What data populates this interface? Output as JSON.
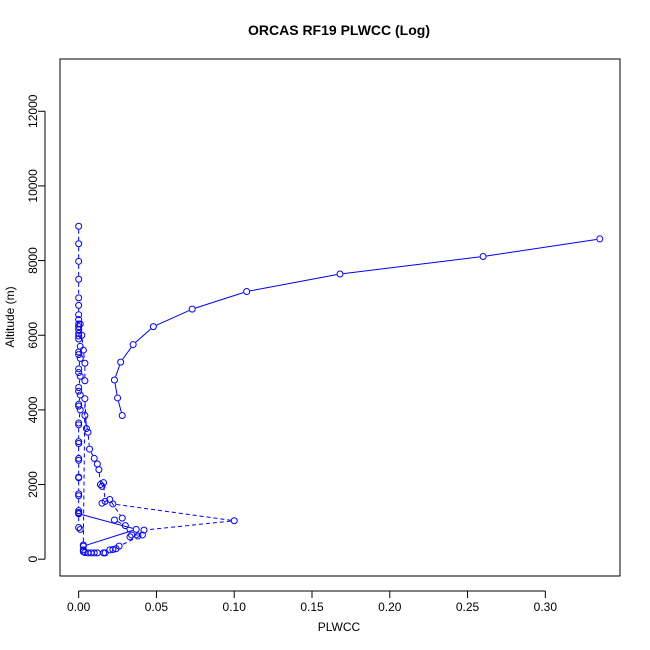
{
  "chart_data": {
    "type": "scatter",
    "title": "ORCAS RF19 PLWCC (Log)",
    "xlabel": "PLWCC",
    "ylabel": "Altitude (m)",
    "xlim": [
      -0.012,
      0.348
    ],
    "ylim": [
      -450,
      13400
    ],
    "xticks": [
      "0.00",
      "0.05",
      "0.10",
      "0.15",
      "0.20",
      "0.25",
      "0.30"
    ],
    "yticks": [
      "0",
      "2000",
      "4000",
      "6000",
      "8000",
      "10000",
      "12000"
    ],
    "color": "#0000ff",
    "marker": "open-circle",
    "grid": false,
    "legend": "none",
    "series": [
      {
        "line_style": "dashed",
        "points": [
          [
            0.0,
            8920
          ],
          [
            0.0,
            8450
          ],
          [
            0.0,
            7980
          ],
          [
            0.0,
            7500
          ],
          [
            0.0,
            7000
          ],
          [
            0.0,
            6800
          ],
          [
            0.0,
            6550
          ],
          [
            0.0,
            6420
          ],
          [
            0.0,
            6300
          ],
          [
            0.0,
            6230
          ],
          [
            0.0,
            6150
          ],
          [
            0.0,
            6050
          ],
          [
            0.0,
            5980
          ],
          [
            0.0,
            5900
          ],
          [
            0.001,
            5700
          ],
          [
            0.0,
            5550
          ],
          [
            0.0,
            5480
          ],
          [
            0.001,
            5380
          ],
          [
            0.0,
            5100
          ],
          [
            0.0,
            5000
          ],
          [
            0.001,
            4900
          ],
          [
            0.0,
            4600
          ],
          [
            0.0,
            4500
          ],
          [
            0.001,
            4400
          ],
          [
            0.0,
            4150
          ],
          [
            0.0,
            4100
          ],
          [
            0.001,
            4000
          ],
          [
            0.0,
            3650
          ],
          [
            0.0,
            3600
          ],
          [
            0.0,
            3150
          ],
          [
            0.0,
            3100
          ],
          [
            0.0,
            2700
          ],
          [
            0.0,
            2650
          ],
          [
            0.0,
            2200
          ],
          [
            0.0,
            2180
          ],
          [
            0.0,
            1750
          ],
          [
            0.0,
            1700
          ],
          [
            0.0,
            1300
          ],
          [
            0.0,
            1250
          ],
          [
            0.0,
            1220
          ],
          [
            0.0,
            850
          ],
          [
            0.001,
            800
          ]
        ]
      },
      {
        "line_style": "solid",
        "points": [
          [
            0.0,
            1220
          ],
          [
            0.037,
            800
          ],
          [
            0.003,
            350
          ],
          [
            0.003,
            250
          ],
          [
            0.003,
            200
          ],
          [
            0.004,
            180
          ],
          [
            0.006,
            170
          ],
          [
            0.008,
            170
          ],
          [
            0.01,
            170
          ],
          [
            0.012,
            170
          ],
          [
            0.016,
            170
          ],
          [
            0.017,
            170
          ]
        ]
      },
      {
        "line_style": "dashed",
        "points": [
          [
            0.003,
            380
          ],
          [
            0.004,
            4300
          ],
          [
            0.005,
            3500
          ],
          [
            0.004,
            3850
          ],
          [
            0.006,
            3400
          ],
          [
            0.007,
            2950
          ],
          [
            0.01,
            2700
          ],
          [
            0.012,
            2550
          ],
          [
            0.013,
            2400
          ],
          [
            0.014,
            2000
          ],
          [
            0.015,
            1950
          ],
          [
            0.016,
            2050
          ],
          [
            0.017,
            1550
          ],
          [
            0.015,
            1500
          ],
          [
            0.02,
            1600
          ],
          [
            0.028,
            1100
          ],
          [
            0.023,
            1050
          ],
          [
            0.03,
            900
          ],
          [
            0.033,
            600
          ],
          [
            0.034,
            650
          ],
          [
            0.041,
            650
          ],
          [
            0.026,
            350
          ],
          [
            0.024,
            280
          ],
          [
            0.022,
            260
          ],
          [
            0.02,
            250
          ]
        ]
      },
      {
        "line_style": "dashed",
        "points": [
          [
            0.022,
            1480
          ],
          [
            0.1,
            1030
          ],
          [
            0.042,
            780
          ],
          [
            0.038,
            620
          ]
        ]
      },
      {
        "line_style": "solid",
        "points": [
          [
            0.028,
            3850
          ],
          [
            0.025,
            4320
          ],
          [
            0.023,
            4800
          ],
          [
            0.027,
            5280
          ],
          [
            0.035,
            5750
          ],
          [
            0.048,
            6230
          ],
          [
            0.073,
            6700
          ],
          [
            0.108,
            7170
          ],
          [
            0.168,
            7640
          ],
          [
            0.26,
            8110
          ],
          [
            0.335,
            8580
          ]
        ]
      },
      {
        "line_style": "dashed",
        "points": [
          [
            0.001,
            6300
          ],
          [
            0.002,
            6000
          ],
          [
            0.003,
            5600
          ],
          [
            0.004,
            5250
          ],
          [
            0.004,
            4780
          ]
        ]
      }
    ]
  }
}
